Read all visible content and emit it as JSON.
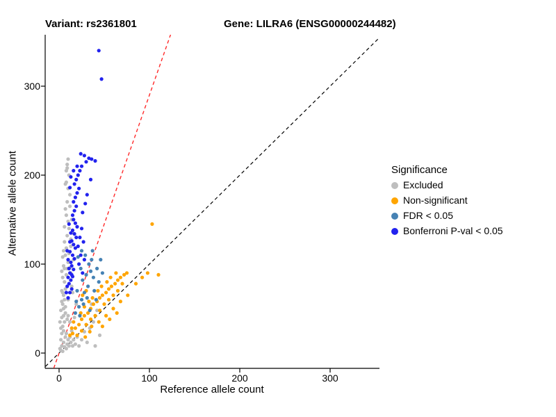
{
  "titles": {
    "variant": "Variant: rs2361801",
    "gene": "Gene: LILRA6 (ENSG00000244482)"
  },
  "chart_data": {
    "type": "scatter",
    "xlabel": "Reference allele count",
    "ylabel": "Alternative allele count",
    "x_ticks": [
      "0",
      "100",
      "200",
      "300"
    ],
    "y_ticks": [
      "0",
      "100",
      "200",
      "300"
    ],
    "x_tick_values": [
      0,
      100,
      200,
      300
    ],
    "y_tick_values": [
      0,
      100,
      200,
      300
    ],
    "xlim": [
      -15,
      355
    ],
    "ylim": [
      -17,
      355
    ],
    "grid": false,
    "legend": {
      "title": "Significance",
      "position": "right"
    },
    "reference_lines": [
      {
        "name": "identity",
        "slope": 1,
        "intercept": 0,
        "color": "#000000",
        "style": "dashed"
      },
      {
        "name": "expected-ratio",
        "slope": 2.9,
        "intercept": 0,
        "color": "#FF2A2A",
        "style": "dashed"
      }
    ],
    "series": [
      {
        "name": "Excluded",
        "color": "#BEBEBE",
        "points": [
          [
            2,
            3
          ],
          [
            3,
            8
          ],
          [
            1,
            5
          ],
          [
            4,
            2
          ],
          [
            5,
            12
          ],
          [
            6,
            7
          ],
          [
            2,
            15
          ],
          [
            3,
            22
          ],
          [
            7,
            18
          ],
          [
            8,
            5
          ],
          [
            4,
            30
          ],
          [
            5,
            25
          ],
          [
            9,
            10
          ],
          [
            10,
            15
          ],
          [
            6,
            35
          ],
          [
            3,
            40
          ],
          [
            2,
            28
          ],
          [
            8,
            22
          ],
          [
            11,
            8
          ],
          [
            12,
            18
          ],
          [
            7,
            45
          ],
          [
            5,
            50
          ],
          [
            4,
            55
          ],
          [
            6,
            60
          ],
          [
            9,
            38
          ],
          [
            10,
            42
          ],
          [
            13,
            12
          ],
          [
            14,
            25
          ],
          [
            15,
            8
          ],
          [
            12,
            35
          ],
          [
            16,
            15
          ],
          [
            18,
            10
          ],
          [
            20,
            18
          ],
          [
            22,
            8
          ],
          [
            25,
            15
          ],
          [
            28,
            24
          ],
          [
            31,
            12
          ],
          [
            34,
            28
          ],
          [
            17,
            40
          ],
          [
            19,
            55
          ],
          [
            38,
            35
          ],
          [
            42,
            48
          ],
          [
            45,
            20
          ],
          [
            36,
            55
          ],
          [
            40,
            8
          ],
          [
            2,
            48
          ],
          [
            3,
            58
          ],
          [
            1,
            35
          ],
          [
            5,
            42
          ],
          [
            7,
            52
          ],
          [
            5,
            65
          ],
          [
            7,
            72
          ],
          [
            6,
            80
          ],
          [
            8,
            88
          ],
          [
            9,
            95
          ],
          [
            10,
            102
          ],
          [
            7,
            110
          ],
          [
            8,
            118
          ],
          [
            6,
            125
          ],
          [
            9,
            132
          ],
          [
            11,
            140
          ],
          [
            10,
            148
          ],
          [
            8,
            155
          ],
          [
            7,
            162
          ],
          [
            9,
            170
          ],
          [
            12,
            178
          ],
          [
            10,
            185
          ],
          [
            8,
            192
          ],
          [
            11,
            200
          ],
          [
            9,
            208
          ],
          [
            13,
            90
          ],
          [
            14,
            75
          ],
          [
            15,
            68
          ],
          [
            12,
            96
          ],
          [
            13,
            120
          ],
          [
            15,
            135
          ],
          [
            16,
            105
          ],
          [
            14,
            150
          ],
          [
            12,
            165
          ],
          [
            10,
            60
          ],
          [
            6,
            142
          ],
          [
            5,
            98
          ],
          [
            4,
            85
          ],
          [
            7,
            190
          ],
          [
            8,
            205
          ],
          [
            9,
            212
          ],
          [
            11,
            112
          ],
          [
            13,
            128
          ],
          [
            3,
            70
          ],
          [
            4,
            108
          ],
          [
            10,
            218
          ],
          [
            6,
            95
          ],
          [
            5,
            115
          ],
          [
            4,
            68
          ],
          [
            3,
            92
          ]
        ]
      },
      {
        "name": "Non-significant",
        "color": "#FFA500",
        "points": [
          [
            15,
            22
          ],
          [
            18,
            28
          ],
          [
            22,
            32
          ],
          [
            25,
            38
          ],
          [
            28,
            42
          ],
          [
            32,
            45
          ],
          [
            35,
            50
          ],
          [
            38,
            55
          ],
          [
            42,
            58
          ],
          [
            45,
            62
          ],
          [
            48,
            65
          ],
          [
            52,
            68
          ],
          [
            55,
            72
          ],
          [
            58,
            75
          ],
          [
            62,
            78
          ],
          [
            65,
            82
          ],
          [
            68,
            85
          ],
          [
            72,
            88
          ],
          [
            75,
            90
          ],
          [
            50,
            55
          ],
          [
            45,
            48
          ],
          [
            40,
            42
          ],
          [
            35,
            38
          ],
          [
            30,
            32
          ],
          [
            55,
            60
          ],
          [
            60,
            65
          ],
          [
            65,
            70
          ],
          [
            70,
            78
          ],
          [
            25,
            25
          ],
          [
            20,
            20
          ],
          [
            33,
            58
          ],
          [
            37,
            62
          ],
          [
            43,
            70
          ],
          [
            47,
            75
          ],
          [
            53,
            80
          ],
          [
            57,
            85
          ],
          [
            63,
            90
          ],
          [
            28,
            52
          ],
          [
            24,
            45
          ],
          [
            85,
            78
          ],
          [
            92,
            85
          ],
          [
            103,
            145
          ],
          [
            98,
            90
          ],
          [
            110,
            88
          ],
          [
            36,
            30
          ],
          [
            44,
            35
          ],
          [
            52,
            42
          ],
          [
            60,
            50
          ],
          [
            68,
            58
          ],
          [
            76,
            65
          ],
          [
            29,
            18
          ],
          [
            34,
            24
          ],
          [
            48,
            30
          ],
          [
            56,
            38
          ],
          [
            64,
            45
          ],
          [
            16,
            35
          ],
          [
            14,
            28
          ],
          [
            12,
            20
          ],
          [
            26,
            65
          ],
          [
            30,
            70
          ]
        ]
      },
      {
        "name": "FDR < 0.05",
        "color": "#4682B4",
        "points": [
          [
            18,
            45
          ],
          [
            22,
            52
          ],
          [
            25,
            60
          ],
          [
            28,
            68
          ],
          [
            32,
            75
          ],
          [
            26,
            82
          ],
          [
            30,
            88
          ],
          [
            35,
            92
          ],
          [
            24,
            95
          ],
          [
            20,
            70
          ],
          [
            38,
            85
          ],
          [
            42,
            95
          ],
          [
            36,
            105
          ],
          [
            29,
            110
          ],
          [
            33,
            100
          ],
          [
            27,
            55
          ],
          [
            31,
            62
          ],
          [
            39,
            70
          ],
          [
            44,
            80
          ],
          [
            48,
            90
          ],
          [
            23,
            42
          ],
          [
            19,
            58
          ],
          [
            34,
            48
          ],
          [
            41,
            60
          ],
          [
            46,
            105
          ],
          [
            25,
            115
          ],
          [
            21,
            108
          ],
          [
            37,
            115
          ]
        ]
      },
      {
        "name": "Bonferroni P-val < 0.05",
        "color": "#2222EE",
        "points": [
          [
            10,
            62
          ],
          [
            12,
            68
          ],
          [
            14,
            72
          ],
          [
            11,
            78
          ],
          [
            13,
            82
          ],
          [
            15,
            86
          ],
          [
            12,
            90
          ],
          [
            16,
            94
          ],
          [
            14,
            98
          ],
          [
            13,
            102
          ],
          [
            17,
            106
          ],
          [
            15,
            110
          ],
          [
            12,
            114
          ],
          [
            18,
            118
          ],
          [
            16,
            122
          ],
          [
            14,
            126
          ],
          [
            19,
            130
          ],
          [
            17,
            134
          ],
          [
            15,
            138
          ],
          [
            20,
            142
          ],
          [
            18,
            146
          ],
          [
            16,
            150
          ],
          [
            11,
            95
          ],
          [
            10,
            105
          ],
          [
            9,
            115
          ],
          [
            12,
            125
          ],
          [
            13,
            135
          ],
          [
            11,
            145
          ],
          [
            22,
            100
          ],
          [
            24,
            110
          ],
          [
            21,
            120
          ],
          [
            23,
            130
          ],
          [
            26,
            90
          ],
          [
            25,
            140
          ],
          [
            28,
            105
          ],
          [
            27,
            125
          ],
          [
            10,
            85
          ],
          [
            9,
            75
          ],
          [
            8,
            68
          ],
          [
            14,
            88
          ],
          [
            15,
            155
          ],
          [
            17,
            160
          ],
          [
            19,
            165
          ],
          [
            16,
            170
          ],
          [
            18,
            175
          ],
          [
            20,
            180
          ],
          [
            22,
            185
          ],
          [
            17,
            190
          ],
          [
            19,
            195
          ],
          [
            21,
            200
          ],
          [
            23,
            205
          ],
          [
            25,
            210
          ],
          [
            30,
            215
          ],
          [
            33,
            219
          ],
          [
            28,
            222
          ],
          [
            36,
            218
          ],
          [
            40,
            216
          ],
          [
            24,
            224
          ],
          [
            20,
            210
          ],
          [
            16,
            205
          ],
          [
            13,
            198
          ],
          [
            12,
            186
          ],
          [
            26,
            158
          ],
          [
            29,
            168
          ],
          [
            31,
            178
          ],
          [
            35,
            195
          ],
          [
            44,
            340
          ],
          [
            47,
            308
          ]
        ]
      }
    ]
  }
}
